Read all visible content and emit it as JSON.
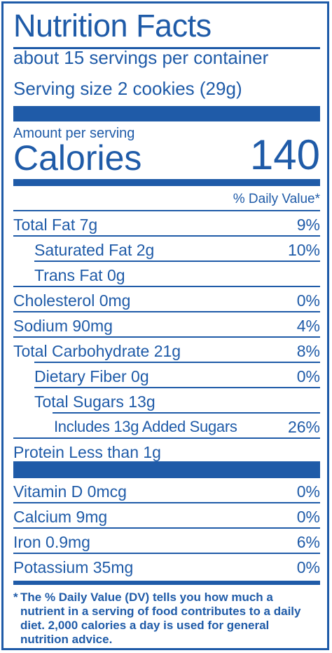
{
  "title": "Nutrition Facts",
  "servings_per_container": "about 15 servings per container",
  "serving_size": "Serving size 2 cookies (29g)",
  "amount_per_serving": "Amount per serving",
  "calories_label": "Calories",
  "calories_value": "140",
  "daily_value_header": "% Daily Value*",
  "nutrients": [
    {
      "name": "Total Fat 7g",
      "dv": "9%"
    },
    {
      "name": "Saturated Fat 2g",
      "dv": "10%"
    },
    {
      "name": "Trans Fat 0g",
      "dv": ""
    },
    {
      "name": "Cholesterol 0mg",
      "dv": "0%"
    },
    {
      "name": "Sodium 90mg",
      "dv": "4%"
    },
    {
      "name": "Total Carbohydrate 21g",
      "dv": "8%"
    },
    {
      "name": "Dietary Fiber 0g",
      "dv": "0%"
    },
    {
      "name": "Total Sugars 13g",
      "dv": ""
    },
    {
      "name": "Includes 13g Added Sugars",
      "dv": "26%"
    },
    {
      "name": "Protein Less than 1g",
      "dv": ""
    }
  ],
  "vitamins": [
    {
      "name": "Vitamin D 0mcg",
      "dv": "0%"
    },
    {
      "name": "Calcium 9mg",
      "dv": "0%"
    },
    {
      "name": "Iron 0.9mg",
      "dv": "6%"
    },
    {
      "name": "Potassium 35mg",
      "dv": "0%"
    }
  ],
  "footnote_star": "*",
  "footnote": "The % Daily Value (DV) tells you how much a nutrient in a serving of food contributes to a daily diet. 2,000 calories a day is used for general nutrition advice.",
  "colors": {
    "label_blue": "#1f5ba8",
    "background": "#ffffff"
  }
}
